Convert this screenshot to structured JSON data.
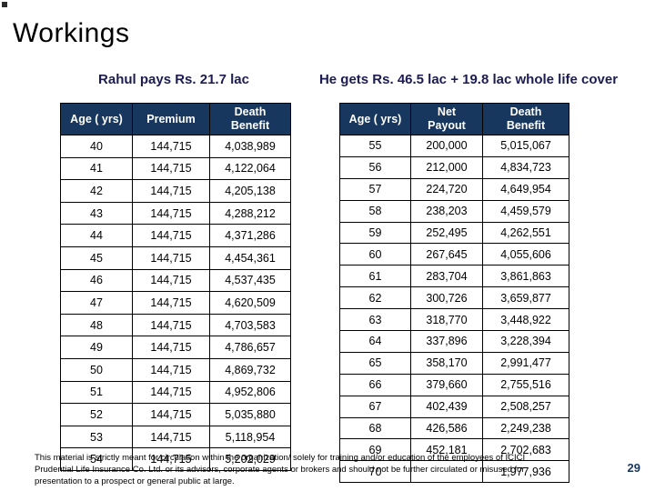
{
  "slide": {
    "title": "Workings",
    "page_number": "29"
  },
  "subtitles": {
    "left": "Rahul pays Rs. 21.7 lac",
    "right": "He gets Rs. 46.5 lac + 19.8 lac whole life cover"
  },
  "left_table": {
    "headers": [
      "Age ( yrs)",
      "Premium",
      "Death\nBenefit"
    ],
    "rows": [
      [
        "40",
        "144,715",
        "4,038,989"
      ],
      [
        "41",
        "144,715",
        "4,122,064"
      ],
      [
        "42",
        "144,715",
        "4,205,138"
      ],
      [
        "43",
        "144,715",
        "4,288,212"
      ],
      [
        "44",
        "144,715",
        "4,371,286"
      ],
      [
        "45",
        "144,715",
        "4,454,361"
      ],
      [
        "46",
        "144,715",
        "4,537,435"
      ],
      [
        "47",
        "144,715",
        "4,620,509"
      ],
      [
        "48",
        "144,715",
        "4,703,583"
      ],
      [
        "49",
        "144,715",
        "4,786,657"
      ],
      [
        "50",
        "144,715",
        "4,869,732"
      ],
      [
        "51",
        "144,715",
        "4,952,806"
      ],
      [
        "52",
        "144,715",
        "5,035,880"
      ],
      [
        "53",
        "144,715",
        "5,118,954"
      ],
      [
        "54",
        "144,715",
        "5,202,029"
      ]
    ]
  },
  "right_table": {
    "headers": [
      "Age ( yrs)",
      "Net\nPayout",
      "Death\nBenefit"
    ],
    "rows": [
      [
        "55",
        "200,000",
        "5,015,067"
      ],
      [
        "56",
        "212,000",
        "4,834,723"
      ],
      [
        "57",
        "224,720",
        "4,649,954"
      ],
      [
        "58",
        "238,203",
        "4,459,579"
      ],
      [
        "59",
        "252,495",
        "4,262,551"
      ],
      [
        "60",
        "267,645",
        "4,055,606"
      ],
      [
        "61",
        "283,704",
        "3,861,863"
      ],
      [
        "62",
        "300,726",
        "3,659,877"
      ],
      [
        "63",
        "318,770",
        "3,448,922"
      ],
      [
        "64",
        "337,896",
        "3,228,394"
      ],
      [
        "65",
        "358,170",
        "2,991,477"
      ],
      [
        "66",
        "379,660",
        "2,755,516"
      ],
      [
        "67",
        "402,439",
        "2,508,257"
      ],
      [
        "68",
        "426,586",
        "2,249,238"
      ],
      [
        "69",
        "452,181",
        "2,702,683"
      ],
      [
        "70",
        "",
        "1,977,936"
      ]
    ]
  },
  "footer": {
    "line1": "This material is strictly meant for circulation within the organization/ solely for training and/or education of the employees of ICICI",
    "line2": "Prudential Life Insurance Co. Ltd. or its advisors, corporate agents or brokers and should not be further circulated or misused for",
    "line3": "presentation to a prospect or general public at large."
  },
  "colors": {
    "table_header_bg": "#17375e",
    "table_header_text": "#ffffff",
    "subtitle_text": "#1c1c52",
    "title_text": "#000000",
    "page_number_text": "#17375e"
  }
}
